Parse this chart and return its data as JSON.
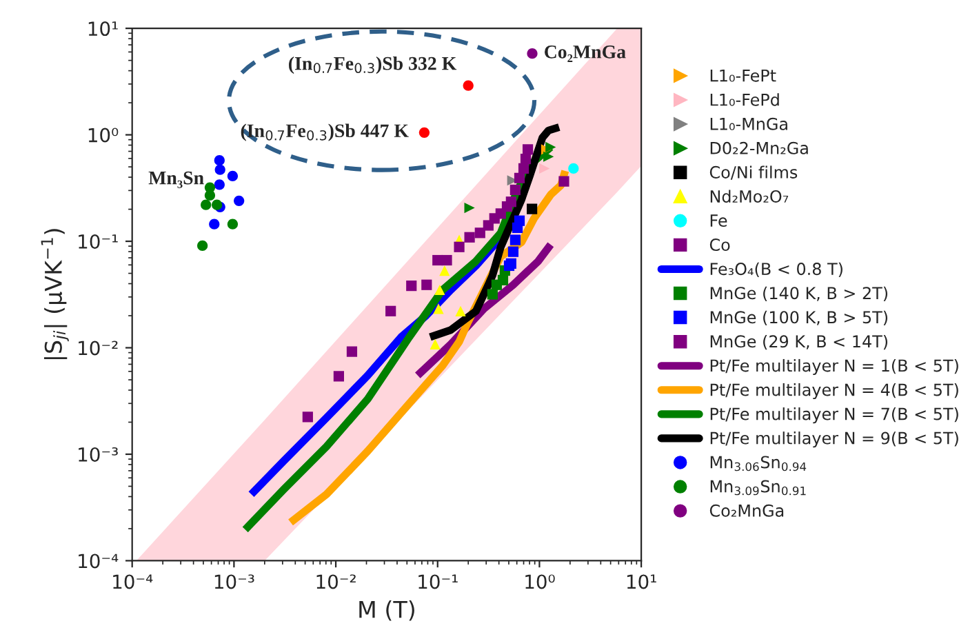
{
  "chart_data": {
    "type": "scatter",
    "xlabel": "M (T)",
    "ylabel": "|S$_{ji}$| (μVK$^{−1}$)",
    "log": "xy",
    "xlim": [
      0.0001,
      10
    ],
    "ylim": [
      0.0001,
      10
    ],
    "xticks": [
      {
        "value": 0.0001,
        "label": "10⁻⁴"
      },
      {
        "value": 0.001,
        "label": "10⁻³"
      },
      {
        "value": 0.01,
        "label": "10⁻²"
      },
      {
        "value": 0.1,
        "label": "10⁻¹"
      },
      {
        "value": 1,
        "label": "10⁰"
      },
      {
        "value": 10,
        "label": "10¹"
      }
    ],
    "yticks": [
      {
        "value": 0.0001,
        "label": "10⁻⁴"
      },
      {
        "value": 0.001,
        "label": "10⁻³"
      },
      {
        "value": 0.01,
        "label": "10⁻²"
      },
      {
        "value": 0.1,
        "label": "10⁻¹"
      },
      {
        "value": 1,
        "label": "10⁰"
      },
      {
        "value": 10,
        "label": "10¹"
      }
    ],
    "grid": false,
    "legend": "right",
    "annotations": [
      {
        "text": "Mn₃Sn",
        "x": 0.00072,
        "y": 0.575
      },
      {
        "text": "(In$_{0.7}$Fe$_{0.3}$)Sb 332 K",
        "x": 0.2,
        "y": 2.9
      },
      {
        "text": "(In$_{0.7}$Fe$_{0.3}$)Sb 447 K",
        "x": 0.074,
        "y": 1.05
      },
      {
        "text": "Co₂MnGa",
        "x": 0.85,
        "y": 5.8
      }
    ],
    "series": [
      {
        "type": "area",
        "color": "#ffd6dc",
        "x": [
          0.00011,
          0.002,
          5.8,
          10
        ],
        "values": [
          0.0001,
          0.0021,
          10,
          10
        ]
      },
      {
        "type": "area",
        "color": "#ffffff",
        "x": [
          0.002,
          5.8,
          10
        ],
        "values": [
          0.0001,
          0.29,
          0.51
        ]
      },
      {
        "name": "L1₀-FePt",
        "color": "#ffa500",
        "marker": "triangle-right",
        "x": [
          1.17
        ],
        "values": [
          0.728
        ]
      },
      {
        "name": "L1₀-FePd",
        "color": "#ffb6c1",
        "marker": "triangle-right",
        "x": [
          1.12
        ],
        "values": [
          0.483
        ]
      },
      {
        "name": "L1₀-MnGa",
        "color": "#808080",
        "marker": "triangle-right",
        "x": [
          0.543
        ],
        "values": [
          0.373
        ]
      },
      {
        "name": "D0₂2-Mn₂Ga",
        "color": "#008000",
        "marker": "triangle-right",
        "x": [
          0.206,
          1.29,
          1.23
        ],
        "values": [
          0.206,
          0.766,
          0.624
        ]
      },
      {
        "name": "Co/Ni films",
        "color": "#000000",
        "marker": "square",
        "x": [
          0.845
        ],
        "values": [
          0.201
        ]
      },
      {
        "name": "Nd₂Mo₂O₇",
        "color": "#ffff00",
        "marker": "triangle",
        "x": [
          0.0946,
          0.168,
          0.102,
          0.105,
          0.117,
          0.163
        ],
        "values": [
          0.0108,
          0.0221,
          0.0233,
          0.035,
          0.053,
          0.103
        ]
      },
      {
        "name": "Fe",
        "color": "#00ffff",
        "marker": "circle",
        "x": [
          2.16
        ],
        "values": [
          0.483
        ]
      },
      {
        "name": "Co",
        "color": "#800080",
        "marker": "square",
        "x": [
          1.74
        ],
        "values": [
          0.366
        ]
      },
      {
        "type": "line",
        "name": "Fe₃O₄(B < 0.8 T)",
        "color": "#0000ff",
        "marker": "none",
        "x": [
          0.00148,
          0.0031,
          0.0081,
          0.0206,
          0.0438,
          0.077,
          0.135,
          0.238,
          0.346,
          0.458
        ],
        "values": [
          0.00042,
          0.00087,
          0.0022,
          0.0055,
          0.0126,
          0.02,
          0.035,
          0.059,
          0.0885,
          0.12
        ]
      },
      {
        "name": "MnGe (140 K, B > 2T)",
        "color": "#008000",
        "marker": "square",
        "x": [
          0.346,
          0.38,
          0.438,
          0.458
        ],
        "values": [
          0.0318,
          0.039,
          0.0432,
          0.0531
        ]
      },
      {
        "name": "MnGe (100 K, B > 5T)",
        "color": "#0000ff",
        "marker": "square",
        "x": [
          0.504,
          0.527,
          0.553,
          0.579,
          0.608,
          0.637
        ],
        "values": [
          0.059,
          0.0618,
          0.0798,
          0.103,
          0.134,
          0.156
        ]
      },
      {
        "name": "MnGe (29 K, B < 14T)",
        "color": "#800080",
        "marker": "square",
        "x": [
          0.0053,
          0.0107,
          0.0144,
          0.0346,
          0.0553,
          0.078,
          0.1,
          0.123,
          0.163,
          0.206,
          0.261,
          0.315,
          0.362,
          0.417,
          0.481,
          0.527,
          0.579,
          0.637,
          0.7,
          0.733,
          0.769
        ],
        "values": [
          0.00224,
          0.0054,
          0.0092,
          0.0221,
          0.0382,
          0.039,
          0.0664,
          0.0664,
          0.0885,
          0.109,
          0.12,
          0.141,
          0.164,
          0.182,
          0.212,
          0.235,
          0.304,
          0.393,
          0.483,
          0.593,
          0.728
        ]
      },
      {
        "type": "line",
        "name": "Pt/Fe multilayer N = 1(B < 5T)",
        "color": "#800080",
        "marker": "none",
        "x": [
          0.0637,
          0.135,
          0.286,
          0.553,
          0.973,
          1.29
        ],
        "values": [
          0.0055,
          0.0108,
          0.0233,
          0.039,
          0.065,
          0.093
        ]
      },
      {
        "type": "line",
        "name": "Pt/Fe multilayer N = 4(B < 5T)",
        "color": "#ffa500",
        "marker": "none",
        "x": [
          0.0036,
          0.0081,
          0.0206,
          0.0527,
          0.112,
          0.163,
          0.197,
          0.417,
          0.667,
          0.885,
          1.29,
          1.63,
          1.79
        ],
        "values": [
          0.000229,
          0.00042,
          0.00107,
          0.003,
          0.0068,
          0.0114,
          0.0171,
          0.072,
          0.098,
          0.164,
          0.274,
          0.337,
          0.458
        ]
      },
      {
        "type": "line",
        "name": "Pt/Fe multilayer N = 7(B < 5T)",
        "color": "#008000",
        "marker": "none",
        "x": [
          0.00129,
          0.0031,
          0.0081,
          0.0206,
          0.0527,
          0.112,
          0.238,
          0.417,
          0.608,
          0.885,
          1.29
        ],
        "values": [
          0.000196,
          0.00047,
          0.00118,
          0.0033,
          0.0126,
          0.035,
          0.065,
          0.12,
          0.304,
          0.564,
          0.766
        ]
      },
      {
        "type": "line",
        "name": "Pt/Fe multilayer N = 9(B < 5T)",
        "color": "#000000",
        "marker": "none",
        "x": [
          0.0845,
          0.135,
          0.238,
          0.315,
          0.346,
          0.417,
          0.504,
          0.667,
          0.805,
          0.927,
          1.07,
          1.23,
          1.56
        ],
        "values": [
          0.0126,
          0.0147,
          0.0221,
          0.039,
          0.0478,
          0.0885,
          0.134,
          0.247,
          0.413,
          0.624,
          0.94,
          1.1,
          1.18
        ]
      },
      {
        "name": "Mn$_{3.06}$Sn$_{0.94}$",
        "color": "#0000ff",
        "marker": "circle",
        "x": [
          0.00072,
          0.00073,
          0.00097,
          0.00072,
          0.00112,
          0.00073,
          0.00064
        ],
        "values": [
          0.575,
          0.47,
          0.41,
          0.34,
          0.24,
          0.21,
          0.145
        ]
      },
      {
        "name": "Mn$_{3.09}$Sn$_{0.91}$",
        "color": "#008000",
        "marker": "circle",
        "x": [
          0.00058,
          0.00058,
          0.00053,
          0.00068,
          0.00097,
          0.00049
        ],
        "values": [
          0.32,
          0.27,
          0.22,
          0.22,
          0.145,
          0.091
        ]
      },
      {
        "name": "Co₂MnGa",
        "color": "#800080",
        "marker": "circle",
        "x": [
          0.85
        ],
        "values": [
          5.8
        ]
      },
      {
        "color": "#ff0000",
        "marker": "circle",
        "x": [
          0.2,
          0.074
        ],
        "values": [
          2.9,
          1.05
        ]
      }
    ]
  }
}
